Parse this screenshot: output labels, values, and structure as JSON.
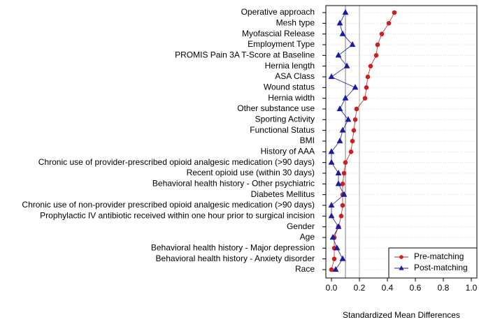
{
  "chart_data": {
    "type": "dotplot",
    "x_label": "Standardized Mean Differences",
    "categories": [
      "Operative approach",
      "Mesh type",
      "Myofascial Release",
      "Employment Type",
      "PROMIS Pain 3A T-Score at Baseline",
      "Hernia length",
      "ASA Class",
      "Wound status",
      "Hernia width",
      "Other substance use",
      "Sporting Activity",
      "Functional Status",
      "BMI",
      "History of AAA",
      "Chronic use of provider-prescribed opioid analgesic medication (>90 days)",
      "Recent opioid use (within 30 days)",
      "Behavioral health history - Other psychiatric",
      "Diabetes Mellitus",
      "Chronic use of non-provider prescribed opioid analgesic medication (>90 days)",
      "Prophylactic IV antibiotic received within one hour prior to surgical incision",
      "Gender",
      "Age",
      "Behavioral health history - Major depression",
      "Behavioral health history - Anxiety disorder",
      "Race"
    ],
    "series": [
      {
        "name": "Pre-matching",
        "color": "#cc2020",
        "marker": "circle",
        "values": [
          0.45,
          0.41,
          0.36,
          0.33,
          0.32,
          0.28,
          0.26,
          0.25,
          0.24,
          0.18,
          0.17,
          0.16,
          0.15,
          0.14,
          0.1,
          0.09,
          0.08,
          0.08,
          0.08,
          0.07,
          0.05,
          0.02,
          0.02,
          0.02,
          0.0
        ]
      },
      {
        "name": "Post-matching",
        "color": "#1c1ca0",
        "marker": "triangle",
        "values": [
          0.1,
          0.06,
          0.08,
          0.15,
          0.05,
          0.11,
          0.0,
          0.17,
          0.1,
          0.06,
          0.12,
          0.08,
          0.06,
          0.0,
          0.0,
          0.05,
          0.05,
          0.09,
          0.0,
          0.0,
          0.05,
          0.01,
          0.04,
          0.08,
          0.03
        ]
      }
    ],
    "xlim": [
      -0.04,
      1.04
    ],
    "xticks": [
      {
        "value": 0,
        "label": "0.0"
      },
      0.2,
      0.4,
      0.6,
      0.8,
      {
        "value": 1,
        "label": "1.0"
      }
    ],
    "reference_lines": [
      0.1,
      0.2
    ],
    "grid": true,
    "legend_position": "bottom-right"
  }
}
